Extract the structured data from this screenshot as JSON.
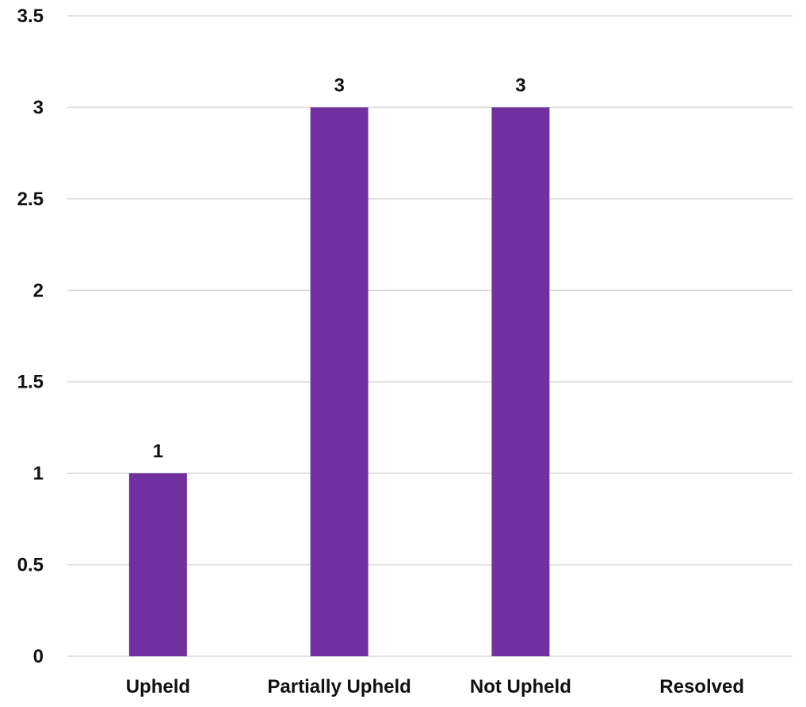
{
  "chart_data": {
    "type": "bar",
    "categories": [
      "Upheld",
      "Partially Upheld",
      "Not Upheld",
      "Resolved"
    ],
    "values": [
      1,
      3,
      3,
      0
    ],
    "data_labels": [
      "1",
      "3",
      "3",
      ""
    ],
    "title": "",
    "xlabel": "",
    "ylabel": "",
    "ylim": [
      0,
      3.5
    ],
    "yticks": [
      0,
      0.5,
      1,
      1.5,
      2,
      2.5,
      3,
      3.5
    ],
    "ytick_labels": [
      "0",
      "0.5",
      "1",
      "1.5",
      "2",
      "2.5",
      "3",
      "3.5"
    ],
    "grid": true,
    "legend": "none",
    "bar_color": "#7030A0",
    "grid_color": "#D9D9D9"
  }
}
